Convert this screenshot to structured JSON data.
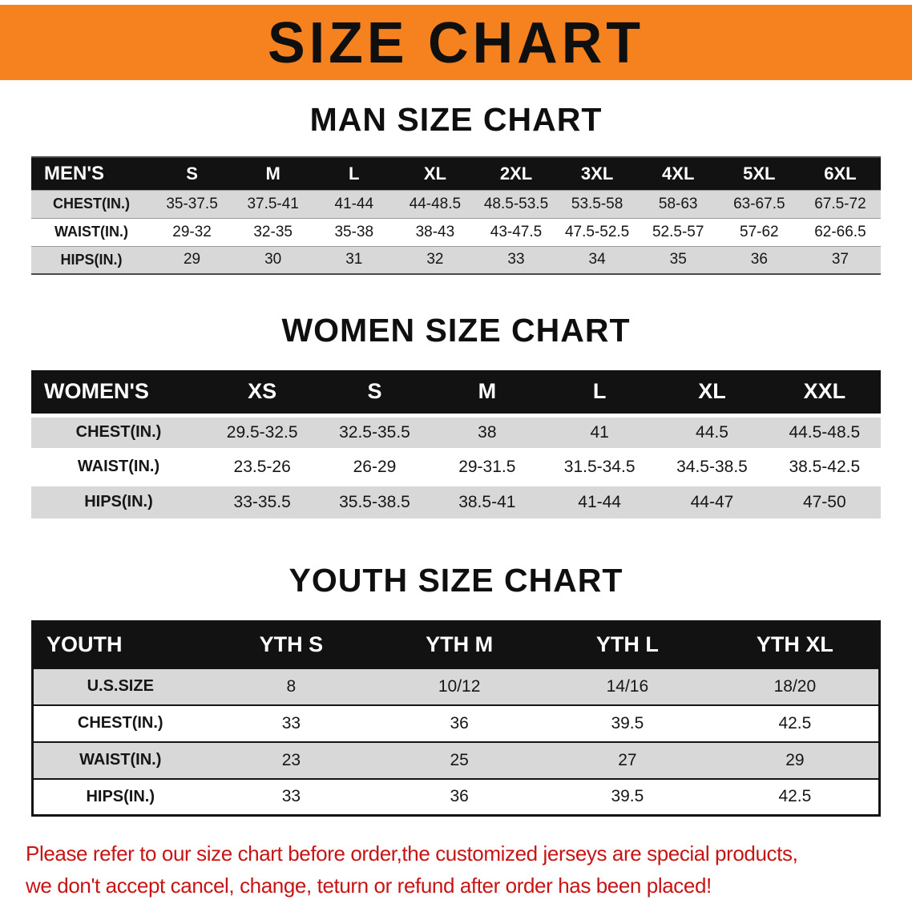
{
  "banner": {
    "title": "SIZE CHART"
  },
  "sections": [
    {
      "heading": "MAN SIZE CHART",
      "table": {
        "name": "men",
        "header": [
          "MEN'S",
          "S",
          "M",
          "L",
          "XL",
          "2XL",
          "3XL",
          "4XL",
          "5XL",
          "6XL"
        ],
        "rows": [
          [
            "CHEST(IN.)",
            "35-37.5",
            "37.5-41",
            "41-44",
            "44-48.5",
            "48.5-53.5",
            "53.5-58",
            "58-63",
            "63-67.5",
            "67.5-72"
          ],
          [
            "WAIST(IN.)",
            "29-32",
            "32-35",
            "35-38",
            "38-43",
            "43-47.5",
            "47.5-52.5",
            "52.5-57",
            "57-62",
            "62-66.5"
          ],
          [
            "HIPS(IN.)",
            "29",
            "30",
            "31",
            "32",
            "33",
            "34",
            "35",
            "36",
            "37"
          ]
        ]
      }
    },
    {
      "heading": "WOMEN SIZE CHART",
      "table": {
        "name": "women",
        "header": [
          "WOMEN'S",
          "XS",
          "S",
          "M",
          "L",
          "XL",
          "XXL"
        ],
        "rows": [
          [
            "CHEST(IN.)",
            "29.5-32.5",
            "32.5-35.5",
            "38",
            "41",
            "44.5",
            "44.5-48.5"
          ],
          [
            "WAIST(IN.)",
            "23.5-26",
            "26-29",
            "29-31.5",
            "31.5-34.5",
            "34.5-38.5",
            "38.5-42.5"
          ],
          [
            "HIPS(IN.)",
            "33-35.5",
            "35.5-38.5",
            "38.5-41",
            "41-44",
            "44-47",
            "47-50"
          ]
        ]
      }
    },
    {
      "heading": "YOUTH SIZE CHART",
      "table": {
        "name": "youth",
        "header": [
          "YOUTH",
          "YTH S",
          "YTH M",
          "YTH L",
          "YTH XL"
        ],
        "rows": [
          [
            "U.S.SIZE",
            "8",
            "10/12",
            "14/16",
            "18/20"
          ],
          [
            "CHEST(IN.)",
            "33",
            "36",
            "39.5",
            "42.5"
          ],
          [
            "WAIST(IN.)",
            "23",
            "25",
            "27",
            "29"
          ],
          [
            "HIPS(IN.)",
            "33",
            "36",
            "39.5",
            "42.5"
          ]
        ]
      }
    }
  ],
  "footer": {
    "line1": "Please refer to our size chart before order,the customized jerseys are special products,",
    "line2": "we don't accept cancel, change, teturn or refund after order has been placed!"
  },
  "colors": {
    "banner_orange": "#F5821F",
    "row_gray": "#D8D8D8",
    "header_black": "#121212",
    "footer_red": "#C81414"
  }
}
